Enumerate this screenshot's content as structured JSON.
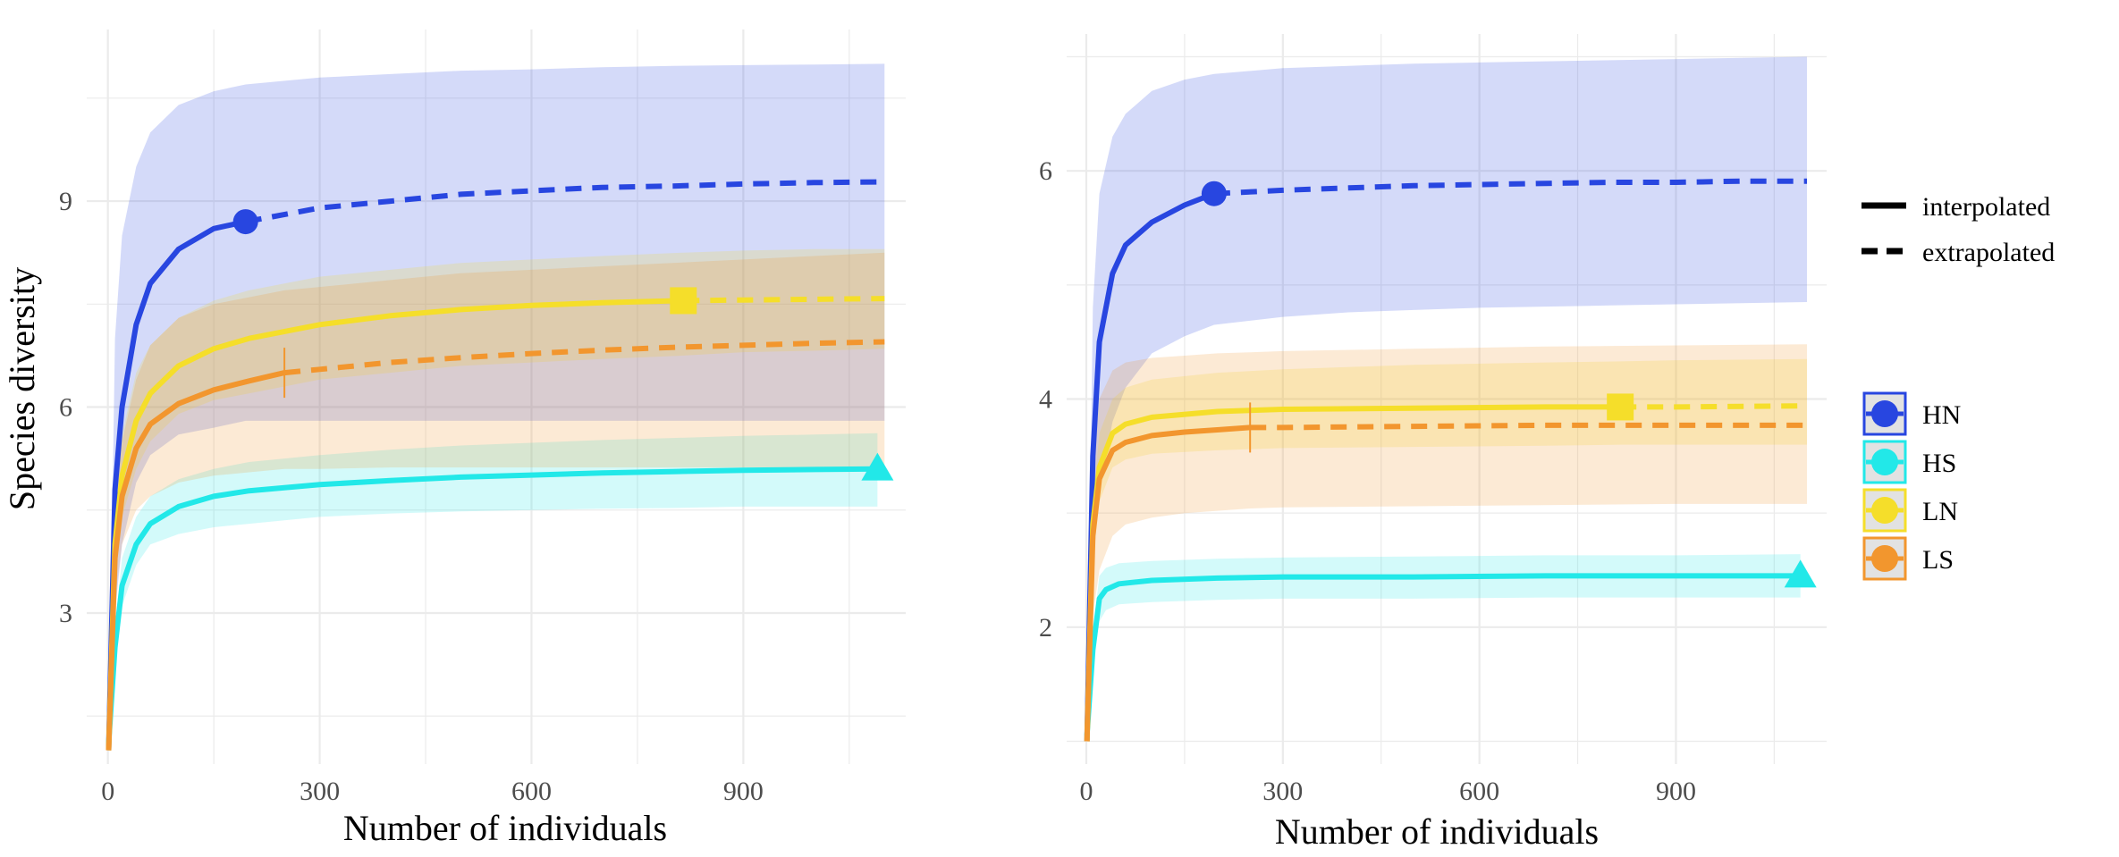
{
  "chart_data": [
    {
      "type": "line",
      "title": "",
      "xlabel": "Number of individuals",
      "ylabel": "Species diversity",
      "xlim": [
        -30,
        1130
      ],
      "ylim": [
        0.8,
        11.5
      ],
      "xticks": [
        0,
        300,
        600,
        900
      ],
      "yticks": [
        3,
        6,
        9
      ],
      "grid": true,
      "series": [
        {
          "name": "HN",
          "color": "#2846e0",
          "marker": "circle",
          "observed": [
            195,
            8.7
          ],
          "split": 195,
          "x": [
            1,
            10,
            20,
            40,
            60,
            100,
            150,
            195,
            300,
            400,
            500,
            600,
            700,
            800,
            900,
            1000,
            1100
          ],
          "y": [
            1.0,
            4.8,
            6.0,
            7.2,
            7.8,
            8.3,
            8.6,
            8.7,
            8.9,
            9.0,
            9.1,
            9.15,
            9.2,
            9.22,
            9.25,
            9.27,
            9.28
          ],
          "lower": [
            1.0,
            3.0,
            4.0,
            4.9,
            5.3,
            5.6,
            5.7,
            5.8,
            5.8,
            5.8,
            5.8,
            5.8,
            5.8,
            5.8,
            5.8,
            5.8,
            5.8
          ],
          "upper": [
            1.0,
            7.0,
            8.5,
            9.5,
            10.0,
            10.4,
            10.6,
            10.7,
            10.8,
            10.85,
            10.9,
            10.92,
            10.95,
            10.97,
            10.98,
            10.99,
            11.0
          ]
        },
        {
          "name": "HS",
          "color": "#22e8e8",
          "marker": "triangle",
          "observed": [
            1090,
            5.1
          ],
          "split": 1100,
          "x": [
            1,
            10,
            20,
            40,
            60,
            100,
            150,
            200,
            300,
            400,
            500,
            600,
            700,
            800,
            900,
            1000,
            1090
          ],
          "y": [
            1.1,
            2.5,
            3.4,
            4.0,
            4.3,
            4.55,
            4.7,
            4.78,
            4.87,
            4.93,
            4.98,
            5.01,
            5.04,
            5.06,
            5.08,
            5.09,
            5.1
          ],
          "lower": [
            1.1,
            2.2,
            3.1,
            3.7,
            4.0,
            4.15,
            4.25,
            4.3,
            4.4,
            4.45,
            4.48,
            4.5,
            4.52,
            4.53,
            4.55,
            4.55,
            4.55
          ],
          "upper": [
            1.1,
            2.8,
            3.8,
            4.4,
            4.7,
            4.95,
            5.1,
            5.2,
            5.3,
            5.38,
            5.44,
            5.48,
            5.52,
            5.55,
            5.58,
            5.6,
            5.62
          ]
        },
        {
          "name": "LN",
          "color": "#f5de2a",
          "marker": "square",
          "observed": [
            815,
            7.55
          ],
          "split": 815,
          "x": [
            1,
            10,
            20,
            40,
            60,
            100,
            150,
            200,
            300,
            400,
            500,
            600,
            700,
            815,
            900,
            1000,
            1100
          ],
          "y": [
            1.0,
            4.0,
            5.0,
            5.8,
            6.2,
            6.6,
            6.85,
            7.0,
            7.2,
            7.33,
            7.42,
            7.48,
            7.52,
            7.55,
            7.56,
            7.57,
            7.58
          ],
          "lower": [
            1.0,
            3.5,
            4.4,
            5.1,
            5.5,
            5.9,
            6.1,
            6.2,
            6.4,
            6.5,
            6.6,
            6.65,
            6.7,
            6.75,
            6.8,
            6.82,
            6.85
          ],
          "upper": [
            1.0,
            4.5,
            5.6,
            6.5,
            6.9,
            7.3,
            7.55,
            7.7,
            7.9,
            8.0,
            8.1,
            8.15,
            8.2,
            8.25,
            8.28,
            8.3,
            8.3
          ]
        },
        {
          "name": "LS",
          "color": "#f2962e",
          "marker": "tick",
          "observed": [
            250,
            6.5
          ],
          "split": 250,
          "x": [
            1,
            10,
            20,
            40,
            60,
            100,
            150,
            200,
            250,
            300,
            400,
            500,
            600,
            700,
            800,
            900,
            1000,
            1100
          ],
          "y": [
            1.0,
            3.8,
            4.7,
            5.4,
            5.75,
            6.05,
            6.25,
            6.38,
            6.5,
            6.55,
            6.65,
            6.72,
            6.78,
            6.83,
            6.87,
            6.9,
            6.93,
            6.95
          ],
          "lower": [
            1.0,
            3.2,
            4.0,
            4.5,
            4.7,
            4.9,
            5.0,
            5.05,
            5.1,
            5.1,
            5.12,
            5.12,
            5.12,
            5.12,
            5.12,
            5.12,
            5.12,
            5.12
          ],
          "upper": [
            1.0,
            4.5,
            5.5,
            6.4,
            6.9,
            7.3,
            7.5,
            7.6,
            7.7,
            7.75,
            7.85,
            7.95,
            8.0,
            8.05,
            8.1,
            8.15,
            8.2,
            8.25
          ]
        }
      ]
    },
    {
      "type": "line",
      "title": "",
      "xlabel": "Number of individuals",
      "ylabel": "",
      "xlim": [
        -30,
        1130
      ],
      "ylim": [
        0.8,
        7.2
      ],
      "xticks": [
        0,
        300,
        600,
        900
      ],
      "yticks": [
        2,
        4,
        6
      ],
      "grid": true,
      "series": [
        {
          "name": "HN",
          "color": "#2846e0",
          "marker": "circle",
          "observed": [
            195,
            5.8
          ],
          "split": 195,
          "x": [
            1,
            10,
            20,
            40,
            60,
            100,
            150,
            195,
            300,
            400,
            500,
            600,
            700,
            800,
            900,
            1000,
            1100
          ],
          "y": [
            1.0,
            3.5,
            4.5,
            5.1,
            5.35,
            5.55,
            5.7,
            5.8,
            5.83,
            5.85,
            5.87,
            5.88,
            5.89,
            5.9,
            5.9,
            5.91,
            5.91
          ],
          "lower": [
            1.0,
            2.5,
            3.2,
            3.8,
            4.1,
            4.4,
            4.55,
            4.65,
            4.72,
            4.76,
            4.78,
            4.8,
            4.81,
            4.82,
            4.83,
            4.84,
            4.85
          ],
          "upper": [
            1.0,
            4.8,
            5.8,
            6.3,
            6.5,
            6.7,
            6.8,
            6.85,
            6.9,
            6.92,
            6.94,
            6.95,
            6.96,
            6.97,
            6.98,
            6.99,
            7.0
          ]
        },
        {
          "name": "HS",
          "color": "#22e8e8",
          "marker": "triangle",
          "observed": [
            1090,
            2.45
          ],
          "split": 1100,
          "x": [
            1,
            10,
            20,
            30,
            50,
            100,
            200,
            300,
            500,
            700,
            900,
            1090
          ],
          "y": [
            1.05,
            1.8,
            2.25,
            2.33,
            2.38,
            2.41,
            2.43,
            2.44,
            2.44,
            2.45,
            2.45,
            2.45
          ],
          "lower": [
            1.05,
            1.7,
            2.05,
            2.15,
            2.2,
            2.22,
            2.24,
            2.25,
            2.25,
            2.26,
            2.26,
            2.26
          ],
          "upper": [
            1.05,
            1.95,
            2.45,
            2.52,
            2.56,
            2.58,
            2.6,
            2.61,
            2.62,
            2.63,
            2.63,
            2.64
          ]
        },
        {
          "name": "LN",
          "color": "#f5de2a",
          "marker": "square",
          "observed": [
            815,
            3.93
          ],
          "split": 815,
          "x": [
            1,
            10,
            20,
            40,
            60,
            100,
            200,
            300,
            500,
            700,
            815,
            900,
            1100
          ],
          "y": [
            1.0,
            2.9,
            3.4,
            3.7,
            3.78,
            3.84,
            3.89,
            3.91,
            3.92,
            3.93,
            3.93,
            3.93,
            3.94
          ],
          "lower": [
            1.0,
            2.7,
            3.1,
            3.4,
            3.47,
            3.52,
            3.55,
            3.57,
            3.58,
            3.59,
            3.6,
            3.6,
            3.6
          ],
          "upper": [
            1.0,
            3.1,
            3.7,
            4.0,
            4.1,
            4.17,
            4.23,
            4.26,
            4.3,
            4.32,
            4.33,
            4.34,
            4.35
          ]
        },
        {
          "name": "LS",
          "color": "#f2962e",
          "marker": "tick",
          "observed": [
            250,
            3.75
          ],
          "split": 250,
          "x": [
            1,
            10,
            20,
            40,
            60,
            100,
            150,
            200,
            250,
            300,
            500,
            700,
            900,
            1100
          ],
          "y": [
            1.0,
            2.8,
            3.3,
            3.55,
            3.62,
            3.68,
            3.71,
            3.73,
            3.75,
            3.75,
            3.76,
            3.77,
            3.77,
            3.77
          ],
          "lower": [
            1.0,
            2.1,
            2.5,
            2.8,
            2.9,
            2.96,
            3.0,
            3.02,
            3.04,
            3.05,
            3.06,
            3.07,
            3.08,
            3.08
          ],
          "upper": [
            1.0,
            3.4,
            4.0,
            4.25,
            4.32,
            4.36,
            4.38,
            4.4,
            4.41,
            4.42,
            4.44,
            4.46,
            4.47,
            4.48
          ]
        }
      ]
    }
  ],
  "legend": {
    "method": [
      {
        "label": "interpolated",
        "style": "solid"
      },
      {
        "label": "extrapolated",
        "style": "dashed"
      }
    ],
    "groups": [
      {
        "label": "HN",
        "color": "#2846e0"
      },
      {
        "label": "HS",
        "color": "#22e8e8"
      },
      {
        "label": "LN",
        "color": "#f5de2a"
      },
      {
        "label": "LS",
        "color": "#f2962e"
      }
    ]
  }
}
